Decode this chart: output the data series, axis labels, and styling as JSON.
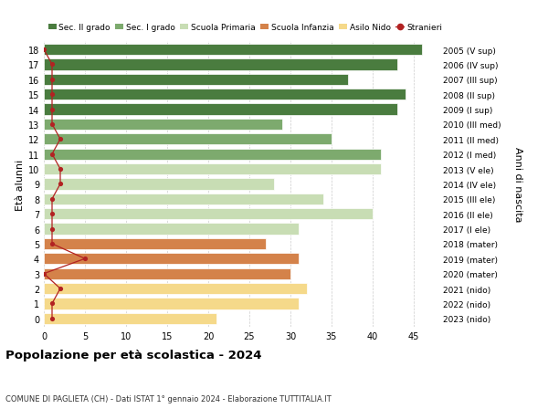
{
  "ages": [
    18,
    17,
    16,
    15,
    14,
    13,
    12,
    11,
    10,
    9,
    8,
    7,
    6,
    5,
    4,
    3,
    2,
    1,
    0
  ],
  "years": [
    "2005 (V sup)",
    "2006 (IV sup)",
    "2007 (III sup)",
    "2008 (II sup)",
    "2009 (I sup)",
    "2010 (III med)",
    "2011 (II med)",
    "2012 (I med)",
    "2013 (V ele)",
    "2014 (IV ele)",
    "2015 (III ele)",
    "2016 (II ele)",
    "2017 (I ele)",
    "2018 (mater)",
    "2019 (mater)",
    "2020 (mater)",
    "2021 (nido)",
    "2022 (nido)",
    "2023 (nido)"
  ],
  "values": [
    46,
    43,
    37,
    44,
    43,
    29,
    35,
    41,
    41,
    28,
    34,
    40,
    31,
    27,
    31,
    30,
    32,
    31,
    21
  ],
  "bar_colors": [
    "#4a7c3f",
    "#4a7c3f",
    "#4a7c3f",
    "#4a7c3f",
    "#4a7c3f",
    "#7daa6e",
    "#7daa6e",
    "#7daa6e",
    "#c8ddb4",
    "#c8ddb4",
    "#c8ddb4",
    "#c8ddb4",
    "#c8ddb4",
    "#d4824a",
    "#d4824a",
    "#d4824a",
    "#f5d98a",
    "#f5d98a",
    "#f5d98a"
  ],
  "legend_labels": [
    "Sec. II grado",
    "Sec. I grado",
    "Scuola Primaria",
    "Scuola Infanzia",
    "Asilo Nido",
    "Stranieri"
  ],
  "legend_colors": [
    "#4a7c3f",
    "#7daa6e",
    "#c8ddb4",
    "#d4824a",
    "#f5d98a",
    "#b22222"
  ],
  "title": "Popolazione per età scolastica - 2024",
  "subtitle": "COMUNE DI PAGLIETA (CH) - Dati ISTAT 1° gennaio 2024 - Elaborazione TUTTITALIA.IT",
  "ylabel_left": "Età alunni",
  "ylabel_right": "Anni di nascita",
  "xlim": [
    0,
    48
  ],
  "xticks": [
    0,
    5,
    10,
    15,
    20,
    25,
    30,
    35,
    40,
    45
  ],
  "background_color": "#ffffff",
  "grid_color": "#cccccc",
  "stranieri_color": "#b22222",
  "stranieri_x": [
    0,
    1,
    1,
    1,
    1,
    1,
    2,
    1,
    2,
    2,
    1,
    1,
    1,
    1,
    5,
    0,
    2,
    1,
    1
  ]
}
